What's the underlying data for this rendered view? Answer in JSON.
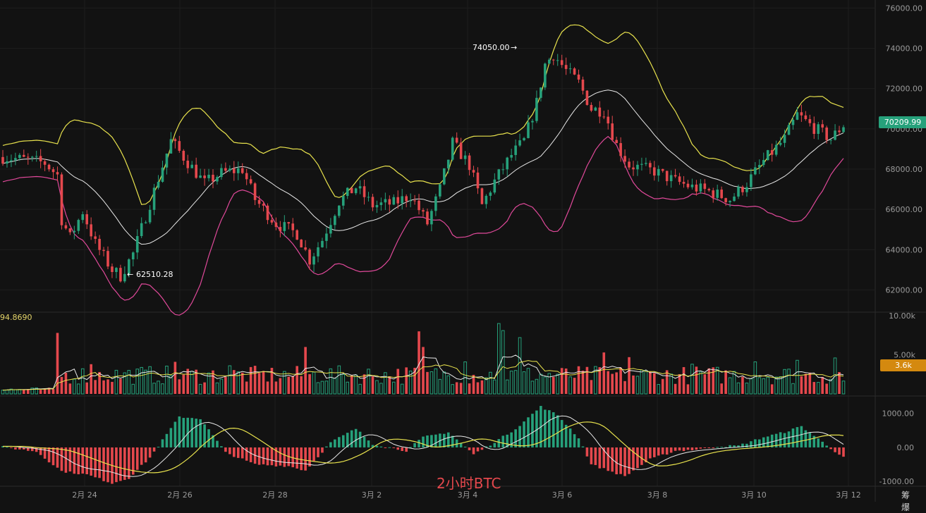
{
  "chart_data": {
    "type": "candlestick",
    "title": "",
    "caption": "2小时BTC",
    "corner_text": "筹 爆",
    "x_ticks": [
      "2月 24",
      "2月 26",
      "2月 28",
      "3月 2",
      "3月 4",
      "3月 6",
      "3月 8",
      "3月 10",
      "3月 12"
    ],
    "price_axis": {
      "ticks": [
        "76000.00",
        "74000.00",
        "72000.00",
        "70000.00",
        "68000.00",
        "66000.00",
        "64000.00",
        "62000.00"
      ],
      "ylim": [
        61000,
        76400
      ]
    },
    "current_price": "70209.99",
    "annotations": {
      "high": "74050.00",
      "low": "62510.28"
    },
    "price_anchors": [
      [
        0,
        68600
      ],
      [
        6,
        68450
      ],
      [
        10,
        68300
      ],
      [
        13,
        67700
      ],
      [
        14,
        65500
      ],
      [
        16,
        64600
      ],
      [
        19,
        65900
      ],
      [
        22,
        64300
      ],
      [
        26,
        63000
      ],
      [
        28,
        62700
      ],
      [
        31,
        63800
      ],
      [
        35,
        66300
      ],
      [
        40,
        69400
      ],
      [
        43,
        68600
      ],
      [
        48,
        67300
      ],
      [
        52,
        67800
      ],
      [
        57,
        68000
      ],
      [
        60,
        66500
      ],
      [
        65,
        65300
      ],
      [
        70,
        64800
      ],
      [
        73,
        63500
      ],
      [
        76,
        64500
      ],
      [
        80,
        66400
      ],
      [
        84,
        67100
      ],
      [
        88,
        66200
      ],
      [
        93,
        66300
      ],
      [
        97,
        66700
      ],
      [
        101,
        65300
      ],
      [
        104,
        67000
      ],
      [
        107,
        69300
      ],
      [
        111,
        68200
      ],
      [
        114,
        66200
      ],
      [
        117,
        67400
      ],
      [
        121,
        68700
      ],
      [
        124,
        69400
      ],
      [
        127,
        71300
      ],
      [
        129,
        73200
      ],
      [
        131,
        73700
      ],
      [
        134,
        72900
      ],
      [
        137,
        72300
      ],
      [
        140,
        71000
      ],
      [
        143,
        70900
      ],
      [
        146,
        69200
      ],
      [
        149,
        68200
      ],
      [
        155,
        67900
      ],
      [
        160,
        67400
      ],
      [
        164,
        67100
      ],
      [
        168,
        66900
      ],
      [
        173,
        66500
      ],
      [
        177,
        67300
      ],
      [
        181,
        68400
      ],
      [
        186,
        69500
      ],
      [
        189,
        70700
      ],
      [
        192,
        70200
      ],
      [
        197,
        69500
      ],
      [
        200,
        70200
      ]
    ],
    "volume_axis": {
      "ticks": [
        "10.00k",
        "5.00k"
      ],
      "ylim": [
        0,
        10000
      ]
    },
    "volume_readout": "94.8690",
    "volume_current": "3.6k",
    "volume_spikes": [
      [
        13,
        7800
      ],
      [
        21,
        3800
      ],
      [
        41,
        4100
      ],
      [
        54,
        3600
      ],
      [
        72,
        6000
      ],
      [
        99,
        8000
      ],
      [
        100,
        6000
      ],
      [
        110,
        4100
      ],
      [
        118,
        9000
      ],
      [
        119,
        8100
      ],
      [
        123,
        7200
      ],
      [
        143,
        5300
      ],
      [
        149,
        4700
      ],
      [
        164,
        3800
      ],
      [
        179,
        4100
      ],
      [
        189,
        4300
      ],
      [
        198,
        4600
      ]
    ],
    "macd_axis": {
      "ticks": [
        "1000.00",
        "0.00",
        "-1000.00"
      ],
      "ylim": [
        -1100,
        1450
      ]
    },
    "macd_anchors": [
      [
        0,
        10
      ],
      [
        8,
        -120
      ],
      [
        14,
        -700
      ],
      [
        20,
        -800
      ],
      [
        26,
        -1050
      ],
      [
        30,
        -900
      ],
      [
        35,
        -300
      ],
      [
        42,
        900
      ],
      [
        47,
        850
      ],
      [
        53,
        -150
      ],
      [
        60,
        -500
      ],
      [
        68,
        -550
      ],
      [
        72,
        -680
      ],
      [
        78,
        150
      ],
      [
        84,
        550
      ],
      [
        88,
        100
      ],
      [
        96,
        -100
      ],
      [
        100,
        300
      ],
      [
        106,
        450
      ],
      [
        112,
        -200
      ],
      [
        116,
        80
      ],
      [
        122,
        550
      ],
      [
        128,
        1200
      ],
      [
        132,
        950
      ],
      [
        137,
        280
      ],
      [
        140,
        -500
      ],
      [
        148,
        -850
      ],
      [
        154,
        -350
      ],
      [
        160,
        -100
      ],
      [
        165,
        -60
      ],
      [
        170,
        30
      ],
      [
        175,
        50
      ],
      [
        181,
        300
      ],
      [
        186,
        450
      ],
      [
        190,
        620
      ],
      [
        194,
        250
      ],
      [
        200,
        -300
      ]
    ]
  }
}
